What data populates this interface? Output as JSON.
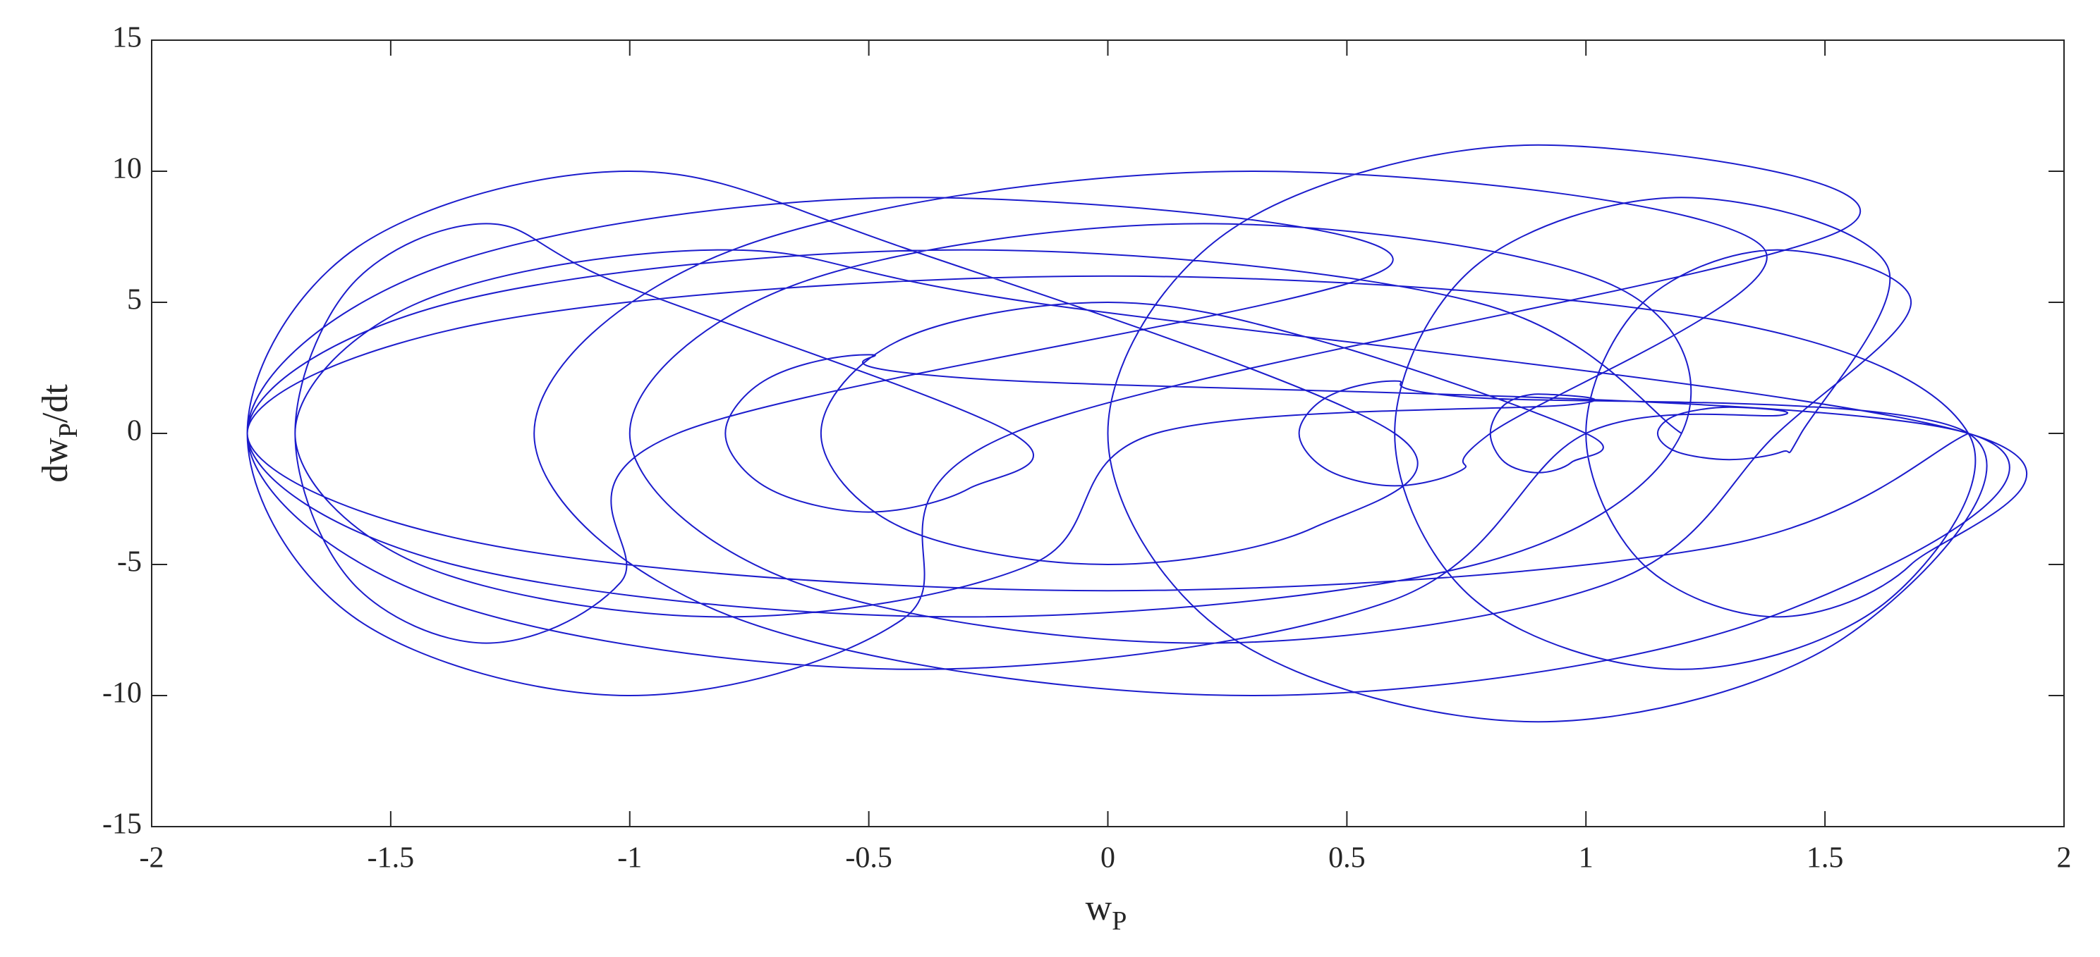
{
  "chart_data": {
    "type": "line",
    "xlabel": {
      "base": "w",
      "sub": "P"
    },
    "ylabel": {
      "base": "dw",
      "sub": "P",
      "rest": "/dt"
    },
    "xlim": [
      -2,
      2
    ],
    "ylim": [
      -15,
      15
    ],
    "xticks": [
      -2,
      -1.5,
      -1,
      -0.5,
      0,
      0.5,
      1,
      1.5,
      2
    ],
    "yticks": [
      -15,
      -10,
      -5,
      0,
      5,
      10,
      15
    ],
    "series": [
      {
        "color": "#1c1ccc",
        "x": [
          1.8,
          1.28,
          0,
          -1.28,
          -1.8,
          -1.28,
          0,
          1.28,
          1.8,
          1.63,
          1.2,
          0.77,
          0.6,
          0.77,
          1.2,
          1.63,
          1.45,
          1.41,
          1.3,
          1.19,
          1.15,
          1.19,
          1.3,
          1.41,
          1.0,
          0.59,
          -0.4,
          -1.39,
          -1.8,
          -1.39,
          -0.4,
          0.59,
          -0.9,
          -1.02,
          -1.3,
          -1.58,
          -1.7,
          -1.58,
          -1.3,
          -1.02,
          -0.2,
          -0.29,
          -0.5,
          -0.71,
          -0.8,
          -0.71,
          -0.5,
          -0.29,
          1.8,
          1.37,
          0.3,
          -0.77,
          -1.2,
          -0.77,
          0.3,
          1.37,
          0.8,
          0.74,
          0.6,
          0.46,
          0.4,
          0.46,
          0.6,
          0.74,
          1.8,
          1.54,
          0.9,
          0.26,
          0,
          0.26,
          0.9,
          1.54,
          -0.2,
          -0.43,
          -1.0,
          -1.57,
          -1.8,
          -1.57,
          -1.0,
          -0.43,
          0.6,
          0.43,
          0,
          -0.43,
          -0.6,
          -0.43,
          0,
          0.43,
          1.0,
          0.97,
          0.9,
          0.83,
          0.8,
          0.83,
          0.9,
          0.97,
          0.1,
          -0.16,
          -0.8,
          -1.44,
          -1.7,
          -1.44,
          -0.8,
          -0.16,
          1.8,
          1.68,
          1.4,
          1.12,
          1.0,
          1.12,
          1.4,
          1.68,
          1.4,
          1.05,
          0.2,
          -0.65,
          -1.0,
          -0.65,
          0.2,
          1.05,
          1.2,
          0.77,
          -0.3,
          -1.37,
          -1.8,
          -1.37,
          -0.3,
          0.77,
          1.2
        ],
        "values": [
          0,
          -4.3,
          -6,
          -4.3,
          0,
          4.3,
          6,
          4.3,
          0,
          -6.4,
          -9,
          -6.4,
          0,
          6.4,
          9,
          6.4,
          0,
          -0.7,
          -1,
          -0.7,
          0,
          0.7,
          1,
          0.7,
          0,
          -6.4,
          -9,
          -6.4,
          0,
          6.4,
          9,
          6.4,
          0,
          -5.7,
          -8,
          -5.7,
          0,
          5.7,
          8,
          5.7,
          0,
          -2.1,
          -3,
          -2.1,
          0,
          2.1,
          3,
          2.1,
          0,
          -7.1,
          -10,
          -7.1,
          0,
          7.1,
          10,
          7.1,
          0,
          -1.4,
          -2,
          -1.4,
          0,
          1.4,
          2,
          1.4,
          0,
          -7.8,
          -11,
          -7.8,
          0,
          7.8,
          11,
          7.8,
          0,
          -7.1,
          -10,
          -7.1,
          0,
          7.1,
          10,
          7.1,
          0,
          -3.6,
          -5,
          -3.6,
          0,
          3.6,
          5,
          3.6,
          0,
          -1.1,
          -1.5,
          -1.1,
          0,
          1.1,
          1.5,
          1.1,
          0,
          -5,
          -7,
          -5,
          0,
          5,
          7,
          5,
          0,
          -5,
          -7,
          -5,
          0,
          5,
          7,
          5,
          0,
          -5.7,
          -8,
          -5.7,
          0,
          5.7,
          8,
          5.7,
          0,
          -5,
          -7,
          -5,
          0,
          5,
          7,
          5,
          0
        ]
      }
    ]
  }
}
